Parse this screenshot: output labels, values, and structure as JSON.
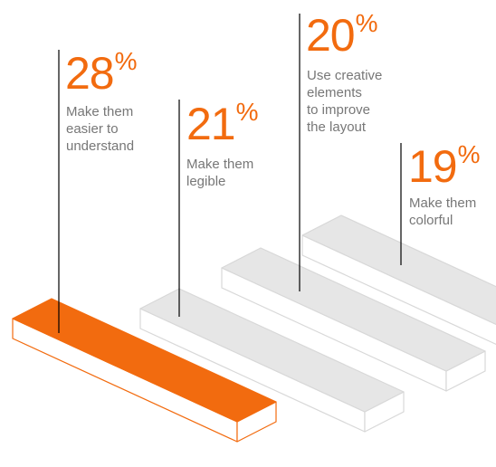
{
  "colors": {
    "accent": "#f26b0f",
    "bar_fill": "#e6e6e6",
    "bar_edge": "#d8d8d8",
    "line": "#000000",
    "text": "#777777"
  },
  "chart_data": {
    "type": "bar",
    "categories": [
      "Make them easier to understand",
      "Make them legible",
      "Use creative elements to improve the layout",
      "Make them colorful"
    ],
    "values": [
      28,
      21,
      20,
      19
    ],
    "unit": "%",
    "highlight_index": 0,
    "title": "",
    "xlabel": "",
    "ylabel": "",
    "labels": [
      {
        "value": "28",
        "unit": "%",
        "text": "Make them\neasier to\nunderstand"
      },
      {
        "value": "21",
        "unit": "%",
        "text": "Make them\nlegible"
      },
      {
        "value": "20",
        "unit": "%",
        "text": "Use creative\nelements\nto improve\nthe layout"
      },
      {
        "value": "19",
        "unit": "%",
        "text": "Make them\ncolorful"
      }
    ]
  }
}
